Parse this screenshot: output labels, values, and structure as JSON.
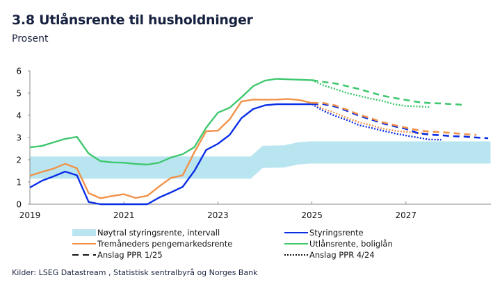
{
  "header": {
    "title": "3.8 Utlånsrente til husholdninger",
    "subtitle": "Prosent"
  },
  "source": "Kilder: LSEG Datastream , Statistisk sentralbyrå og Norges Bank",
  "colors": {
    "styringsrente": "#0a2ee6",
    "tremaaneders": "#f0924a",
    "utlaansrente": "#3fc76e",
    "band": "#b9e5f1",
    "axis": "#8a8a8a",
    "text": "#1b2340"
  },
  "legend": [
    {
      "label": "Nøytral styringsrente, intervall",
      "key": "band",
      "style": "band"
    },
    {
      "label": "Styringsrente",
      "key": "styringsrente",
      "style": "solid"
    },
    {
      "label": "Tremåneders pengemarkedsrente",
      "key": "tremaaneders",
      "style": "solid"
    },
    {
      "label": "Utlånsrente, boliglån",
      "key": "utlaansrente",
      "style": "solid"
    },
    {
      "label": "Anslag PPR 1/25",
      "key": "black",
      "style": "dashed"
    },
    {
      "label": "Anslag PPR 4/24",
      "key": "black",
      "style": "dotted"
    }
  ],
  "chart_data": {
    "type": "line",
    "title": "3.8 Utlånsrente til husholdninger",
    "ylabel": "Prosent",
    "xlabel": "",
    "xlim": [
      2019,
      2028.8
    ],
    "ylim": [
      0,
      6
    ],
    "yticks": [
      0,
      1,
      2,
      3,
      4,
      5,
      6
    ],
    "xticks": [
      2019,
      2021,
      2023,
      2025,
      2027
    ],
    "grid": false,
    "legend_position": "bottom",
    "band": {
      "name": "Nøytral styringsrente, intervall",
      "x": [
        2019,
        2023.7,
        2023.95,
        2024.4,
        2024.7,
        2024.95,
        2028.8
      ],
      "lower": [
        1.15,
        1.15,
        1.63,
        1.65,
        1.78,
        1.83,
        1.83
      ],
      "upper": [
        2.15,
        2.15,
        2.63,
        2.65,
        2.78,
        2.83,
        2.83
      ]
    },
    "series": [
      {
        "name": "Styringsrente",
        "key": "styringsrente",
        "style": "solid",
        "x": [
          2019,
          2019.25,
          2019.5,
          2019.75,
          2020,
          2020.25,
          2020.5,
          2020.75,
          2021,
          2021.25,
          2021.5,
          2021.75,
          2022,
          2022.25,
          2022.5,
          2022.75,
          2023,
          2023.25,
          2023.5,
          2023.75,
          2024,
          2024.25,
          2024.5,
          2024.75,
          2025
        ],
        "values": [
          0.75,
          1.05,
          1.25,
          1.47,
          1.3,
          0.1,
          0.0,
          0.0,
          0.0,
          0.0,
          0.0,
          0.3,
          0.53,
          0.78,
          1.5,
          2.44,
          2.72,
          3.12,
          3.87,
          4.28,
          4.45,
          4.5,
          4.5,
          4.5,
          4.5
        ]
      },
      {
        "name": "Tremåneders pengemarkedsrente",
        "key": "tremaaneders",
        "style": "solid",
        "x": [
          2019,
          2019.25,
          2019.5,
          2019.75,
          2020,
          2020.25,
          2020.5,
          2020.75,
          2021,
          2021.25,
          2021.5,
          2021.75,
          2022,
          2022.25,
          2022.5,
          2022.75,
          2023,
          2023.25,
          2023.5,
          2023.75,
          2024,
          2024.25,
          2024.5,
          2024.75,
          2025
        ],
        "values": [
          1.28,
          1.45,
          1.6,
          1.82,
          1.62,
          0.5,
          0.27,
          0.37,
          0.45,
          0.28,
          0.38,
          0.8,
          1.18,
          1.3,
          2.34,
          3.28,
          3.31,
          3.82,
          4.62,
          4.71,
          4.7,
          4.71,
          4.73,
          4.68,
          4.55
        ]
      },
      {
        "name": "Utlånsrente, boliglån",
        "key": "utlaansrente",
        "style": "solid",
        "x": [
          2019,
          2019.25,
          2019.5,
          2019.75,
          2020,
          2020.25,
          2020.5,
          2020.75,
          2021,
          2021.25,
          2021.5,
          2021.75,
          2022,
          2022.25,
          2022.5,
          2022.75,
          2023,
          2023.25,
          2023.5,
          2023.75,
          2024,
          2024.25,
          2024.5,
          2024.75,
          2025
        ],
        "values": [
          2.56,
          2.62,
          2.78,
          2.94,
          3.03,
          2.28,
          1.94,
          1.88,
          1.87,
          1.81,
          1.78,
          1.87,
          2.1,
          2.25,
          2.57,
          3.44,
          4.12,
          4.34,
          4.81,
          5.31,
          5.56,
          5.64,
          5.62,
          5.6,
          5.58
        ]
      },
      {
        "name": "Styringsrente – Anslag PPR 1/25",
        "key": "styringsrente",
        "style": "dashed",
        "x": [
          2025,
          2025.25,
          2025.5,
          2025.75,
          2026,
          2026.25,
          2026.5,
          2026.75,
          2027,
          2027.25,
          2027.5,
          2027.75,
          2028,
          2028.25,
          2028.5,
          2028.75
        ],
        "values": [
          4.5,
          4.5,
          4.39,
          4.2,
          3.98,
          3.82,
          3.64,
          3.51,
          3.39,
          3.2,
          3.13,
          3.1,
          3.06,
          3.04,
          3.0,
          2.97
        ]
      },
      {
        "name": "Tremåneders – Anslag PPR 1/25",
        "key": "tremaaneders",
        "style": "dashed",
        "x": [
          2025,
          2025.25,
          2025.5,
          2025.75,
          2026,
          2026.25,
          2026.5,
          2026.75,
          2027,
          2027.25,
          2027.5,
          2027.75,
          2028,
          2028.25,
          2028.5
        ],
        "values": [
          4.56,
          4.55,
          4.44,
          4.25,
          4.03,
          3.87,
          3.69,
          3.56,
          3.44,
          3.33,
          3.27,
          3.24,
          3.2,
          3.15,
          3.12
        ]
      },
      {
        "name": "Utlånsrente – Anslag PPR 1/25",
        "key": "utlaansrente",
        "style": "dashed",
        "x": [
          2025,
          2025.25,
          2025.5,
          2025.75,
          2026,
          2026.25,
          2026.5,
          2026.75,
          2027,
          2027.25,
          2027.5,
          2027.75,
          2028,
          2028.25
        ],
        "values": [
          5.58,
          5.5,
          5.43,
          5.31,
          5.18,
          5.03,
          4.88,
          4.78,
          4.69,
          4.6,
          4.55,
          4.53,
          4.5,
          4.47
        ]
      },
      {
        "name": "Styringsrente – Anslag PPR 4/24",
        "key": "styringsrente",
        "style": "dotted",
        "x": [
          2025,
          2025.25,
          2025.5,
          2025.75,
          2026,
          2026.25,
          2026.5,
          2026.75,
          2027,
          2027.25,
          2027.5,
          2027.75
        ],
        "values": [
          4.5,
          4.19,
          3.97,
          3.78,
          3.56,
          3.44,
          3.31,
          3.19,
          3.09,
          3.0,
          2.91,
          2.9
        ]
      },
      {
        "name": "Tremåneders – Anslag PPR 4/24",
        "key": "tremaaneders",
        "style": "dotted",
        "x": [
          2025,
          2025.25,
          2025.5,
          2025.75,
          2026,
          2026.25,
          2026.5,
          2026.75,
          2027,
          2027.25,
          2027.5
        ],
        "values": [
          4.55,
          4.28,
          4.1,
          3.88,
          3.69,
          3.56,
          3.4,
          3.31,
          3.25,
          3.2,
          3.17
        ]
      },
      {
        "name": "Utlånsrente – Anslag PPR 4/24",
        "key": "utlaansrente",
        "style": "dotted",
        "x": [
          2025,
          2025.25,
          2025.5,
          2025.75,
          2026,
          2026.25,
          2026.5,
          2026.75,
          2027,
          2027.25,
          2027.5
        ],
        "values": [
          5.58,
          5.34,
          5.18,
          5.0,
          4.88,
          4.75,
          4.65,
          4.5,
          4.42,
          4.4,
          4.37
        ]
      }
    ]
  }
}
